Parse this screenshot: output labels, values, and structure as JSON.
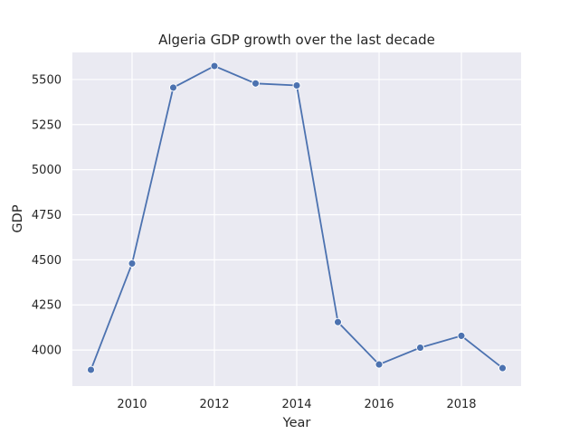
{
  "chart_data": {
    "type": "line",
    "title": "Algeria GDP growth over the last decade",
    "xlabel": "Year",
    "ylabel": "GDP",
    "x": [
      2009,
      2010,
      2011,
      2012,
      2013,
      2014,
      2015,
      2016,
      2017,
      2018,
      2019
    ],
    "series": [
      {
        "values": [
          3890,
          4480,
          5455,
          5575,
          5478,
          5467,
          4155,
          3920,
          4013,
          4079,
          3900
        ]
      }
    ],
    "xlim": [
      2008.55,
      2019.45
    ],
    "ylim": [
      3800,
      5650
    ],
    "xticks": [
      2010,
      2012,
      2014,
      2016,
      2018
    ],
    "yticks": [
      4000,
      4250,
      4500,
      4750,
      5000,
      5250,
      5500
    ],
    "grid": true,
    "style": {
      "background": "#eaeaf2",
      "grid_color": "#ffffff",
      "line_color": "#4c72b0"
    }
  }
}
